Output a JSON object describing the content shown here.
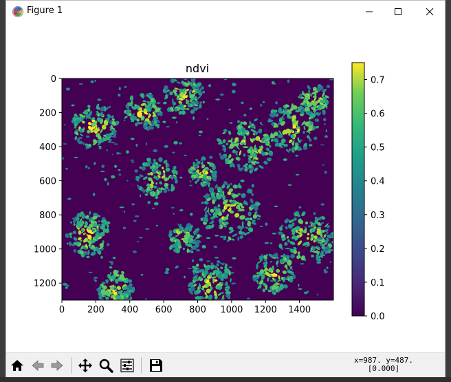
{
  "window": {
    "title": "Figure 1",
    "minimize_glyph": "—",
    "maximize_glyph": "☐",
    "close_glyph": "✕"
  },
  "icons": {
    "app": "matplotlib-figure-icon",
    "home": "home-icon",
    "back": "back-arrow-icon",
    "forward": "forward-arrow-icon",
    "pan": "move-arrows-icon",
    "zoom": "magnifier-icon",
    "configure": "sliders-icon",
    "save": "floppy-disk-icon"
  },
  "toolbar": {
    "coordinate_readout_line1": "x=987. y=487.",
    "coordinate_readout_line2": "[0.000]"
  },
  "chart_data": {
    "type": "heatmap",
    "title": "ndvi",
    "colormap": "viridis",
    "x_ticks": [
      "0",
      "200",
      "400",
      "600",
      "800",
      "1000",
      "1200",
      "1400"
    ],
    "y_ticks": [
      "0",
      "200",
      "400",
      "600",
      "800",
      "1000",
      "1200"
    ],
    "xlim": [
      0,
      1600
    ],
    "ylim": [
      1300,
      0
    ],
    "colorbar": {
      "range": [
        0.0,
        0.75
      ],
      "ticks": [
        "0.0",
        "0.1",
        "0.2",
        "0.3",
        "0.4",
        "0.5",
        "0.6",
        "0.7"
      ]
    }
  },
  "colors": {
    "low": "#440154",
    "mid": "#21918c",
    "high": "#fde725"
  }
}
